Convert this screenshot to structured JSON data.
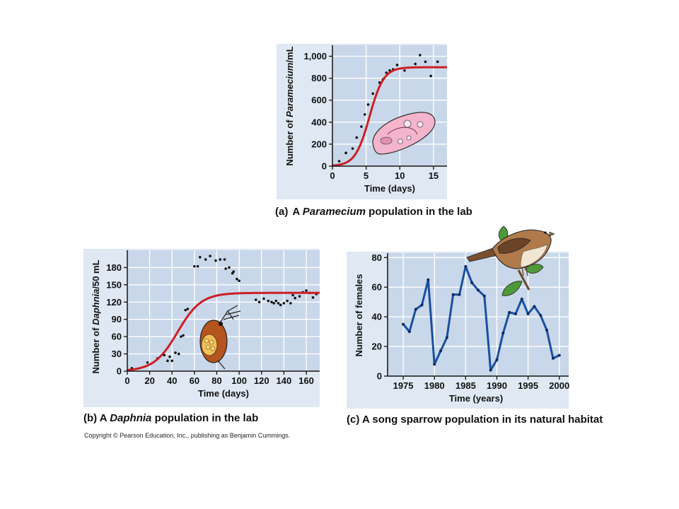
{
  "copyright": "Copyright © Pearson Education, Inc., publishing as Benjamin Cummings.",
  "chart_data": [
    {
      "type": "scatter",
      "caption": {
        "prefix": "(a)",
        "before": "A ",
        "italic": "Paramecium",
        "after": " population in the lab"
      },
      "xlabel": "Time (days)",
      "ylabel": {
        "before": "Number of ",
        "italic": "Paramecium",
        "after": "/mL"
      },
      "xlim": [
        0,
        17
      ],
      "ylim": [
        0,
        1100
      ],
      "xticks": [
        0,
        5,
        10,
        15
      ],
      "yticks": [
        0,
        200,
        400,
        600,
        800,
        1000
      ],
      "ytick_labels": [
        "0",
        "200",
        "400",
        "600",
        "800",
        "1,000"
      ],
      "points": [
        [
          1,
          45
        ],
        [
          2,
          120
        ],
        [
          3,
          160
        ],
        [
          3.6,
          260
        ],
        [
          4.3,
          360
        ],
        [
          4.8,
          470
        ],
        [
          5.3,
          560
        ],
        [
          6,
          660
        ],
        [
          7,
          760
        ],
        [
          7.5,
          790
        ],
        [
          8,
          850
        ],
        [
          8.5,
          870
        ],
        [
          9,
          880
        ],
        [
          9.6,
          920
        ],
        [
          10.7,
          870
        ],
        [
          12.3,
          930
        ],
        [
          13,
          1010
        ],
        [
          13.8,
          950
        ],
        [
          14.6,
          820
        ],
        [
          15.6,
          950
        ]
      ],
      "curve": {
        "type": "logistic",
        "K": 900,
        "r": 0.95,
        "t0": 5.5,
        "color": "#cc1f24"
      },
      "illustration": "paramecium-cell"
    },
    {
      "type": "scatter",
      "caption": {
        "prefix": "(b)",
        "before": " A ",
        "italic": "Daphnia",
        "after": " population in the lab"
      },
      "xlabel": "Time (days)",
      "ylabel": {
        "before": "Number of ",
        "italic": "Daphnia",
        "after": "/50 mL"
      },
      "xlim": [
        0,
        172
      ],
      "ylim": [
        0,
        210
      ],
      "xticks": [
        0,
        20,
        40,
        60,
        80,
        100,
        120,
        140,
        160
      ],
      "yticks": [
        0,
        30,
        60,
        90,
        120,
        150,
        180
      ],
      "points": [
        [
          4,
          5
        ],
        [
          18,
          15
        ],
        [
          27,
          22
        ],
        [
          33,
          28
        ],
        [
          36,
          18
        ],
        [
          38,
          25
        ],
        [
          40,
          18
        ],
        [
          43,
          32
        ],
        [
          46,
          30
        ],
        [
          48,
          60
        ],
        [
          50,
          62
        ],
        [
          52,
          106
        ],
        [
          54,
          108
        ],
        [
          60,
          182
        ],
        [
          63,
          182
        ],
        [
          65,
          198
        ],
        [
          70,
          194
        ],
        [
          74,
          200
        ],
        [
          79,
          192
        ],
        [
          83,
          194
        ],
        [
          87,
          194
        ],
        [
          88,
          178
        ],
        [
          91,
          180
        ],
        [
          94,
          170
        ],
        [
          95,
          173
        ],
        [
          98,
          160
        ],
        [
          100,
          157
        ],
        [
          115,
          124
        ],
        [
          118,
          120
        ],
        [
          122,
          126
        ],
        [
          126,
          122
        ],
        [
          129,
          120
        ],
        [
          131,
          118
        ],
        [
          133,
          122
        ],
        [
          135,
          118
        ],
        [
          137,
          115
        ],
        [
          140,
          118
        ],
        [
          143,
          122
        ],
        [
          146,
          118
        ],
        [
          148,
          132
        ],
        [
          150,
          127
        ],
        [
          154,
          130
        ],
        [
          157,
          137
        ],
        [
          160,
          140
        ],
        [
          163,
          136
        ],
        [
          166,
          128
        ],
        [
          169,
          134
        ]
      ],
      "curve": {
        "type": "logistic",
        "K": 136,
        "r": 0.095,
        "t0": 45,
        "color": "#cc1f24"
      },
      "illustration": "daphnia"
    },
    {
      "type": "line",
      "caption": {
        "prefix": "(c)",
        "before": " A song sparrow population in its natural habitat",
        "italic": "",
        "after": ""
      },
      "xlabel": "Time (years)",
      "ylabel": {
        "before": "Number of females",
        "italic": "",
        "after": ""
      },
      "xlim": [
        1972.5,
        2001.5
      ],
      "ylim": [
        0,
        83
      ],
      "xticks": [
        1975,
        1980,
        1985,
        1990,
        1995,
        2000
      ],
      "yticks": [
        0,
        20,
        40,
        60,
        80
      ],
      "x": [
        1975,
        1976,
        1977,
        1978,
        1979,
        1980,
        1981,
        1982,
        1983,
        1984,
        1985,
        1986,
        1987,
        1988,
        1989,
        1990,
        1991,
        1992,
        1993,
        1994,
        1995,
        1996,
        1997,
        1998,
        1999,
        2000
      ],
      "y": [
        35,
        30,
        45,
        48,
        65,
        8,
        17,
        26,
        55,
        55,
        74,
        63,
        58,
        54,
        4,
        11,
        29,
        43,
        42,
        52,
        42,
        47,
        41,
        31,
        12,
        14
      ],
      "series_color": "#1a4fa0",
      "illustration": "song-sparrow"
    }
  ]
}
